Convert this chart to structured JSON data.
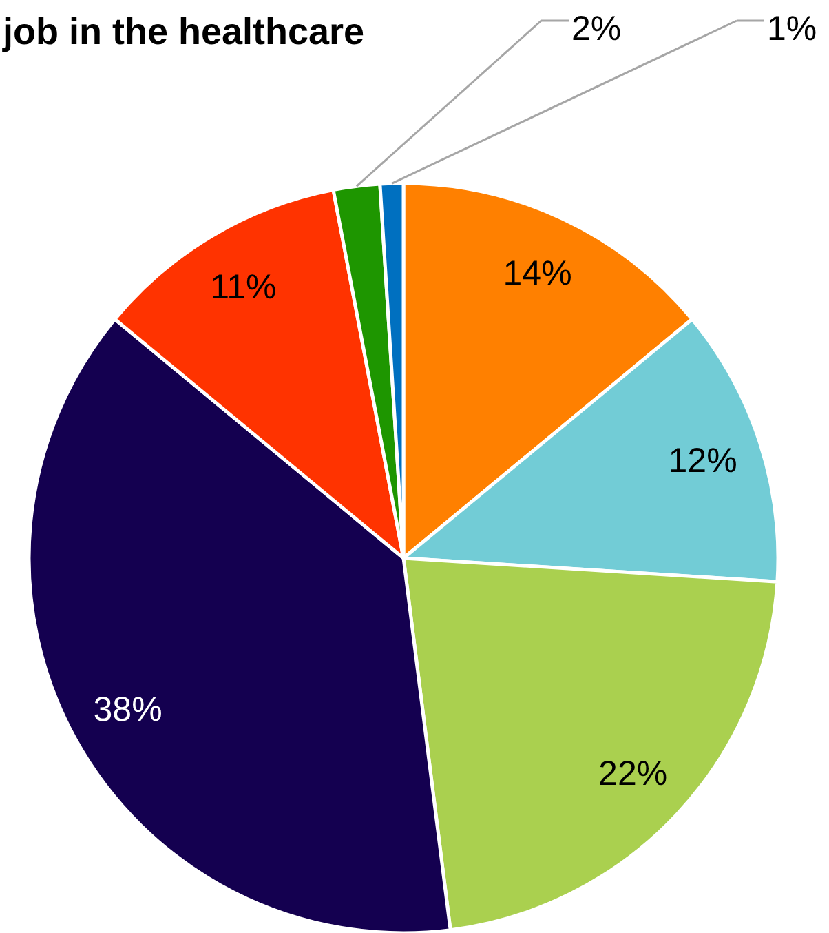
{
  "chart_data": {
    "type": "pie",
    "title": "job in the healthcare",
    "categories": [
      null,
      null,
      null,
      null,
      null,
      null,
      null
    ],
    "values": [
      14,
      12,
      22,
      38,
      11,
      2,
      1
    ],
    "colors": [
      "#ff8000",
      "#72ccd6",
      "#aad04f",
      "#140050",
      "#ff3300",
      "#1e9600",
      "#0070c0"
    ],
    "value_labels": [
      "14%",
      "12%",
      "22%",
      "38%",
      "11%",
      "2%",
      "1%"
    ],
    "legend": false
  }
}
